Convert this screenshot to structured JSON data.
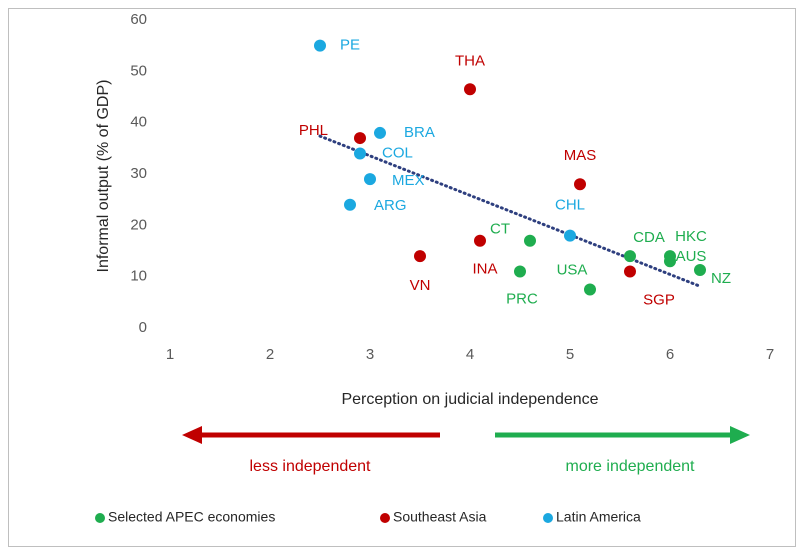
{
  "chart_data": {
    "type": "scatter",
    "x_label": "Perception on judicial independence",
    "y_label": "Informal output (% of GDP)",
    "xlim": [
      1,
      7
    ],
    "xticks": [
      1,
      2,
      3,
      4,
      5,
      6,
      7
    ],
    "ylim": [
      0,
      60
    ],
    "yticks": [
      0,
      10,
      20,
      30,
      40,
      50,
      60
    ],
    "trendline": true,
    "trendline_color": "#2e3f7f",
    "annotations": [
      "less independent",
      "more independent"
    ],
    "annotation_colors": [
      "#c00000",
      "#1fad4f"
    ],
    "series": [
      {
        "name": "Selected APEC economies",
        "color": "#1fad4f",
        "labels": [
          "CT",
          "CDA",
          "HKC",
          "AUS",
          "NZ",
          "PRC",
          "USA"
        ],
        "x": [
          4.6,
          5.6,
          6.0,
          6.0,
          6.3,
          4.5,
          5.2
        ],
        "values": [
          17,
          14,
          14,
          13,
          11.3,
          11,
          7.5
        ]
      },
      {
        "name": "Southeast Asia",
        "color": "#c00000",
        "labels": [
          "THA",
          "PHL",
          "MAS",
          "INA",
          "VN",
          "SGP"
        ],
        "x": [
          4.0,
          2.9,
          5.1,
          4.1,
          3.5,
          5.6
        ],
        "values": [
          46.5,
          37,
          28,
          17,
          14,
          11
        ]
      },
      {
        "name": "Latin America",
        "color": "#1ba8e0",
        "labels": [
          "PE",
          "BRA",
          "COL",
          "MEX",
          "ARG",
          "CHL"
        ],
        "x": [
          2.5,
          3.1,
          2.9,
          3.0,
          2.8,
          5.0
        ],
        "values": [
          55,
          38,
          34,
          29,
          24,
          18
        ]
      }
    ]
  }
}
